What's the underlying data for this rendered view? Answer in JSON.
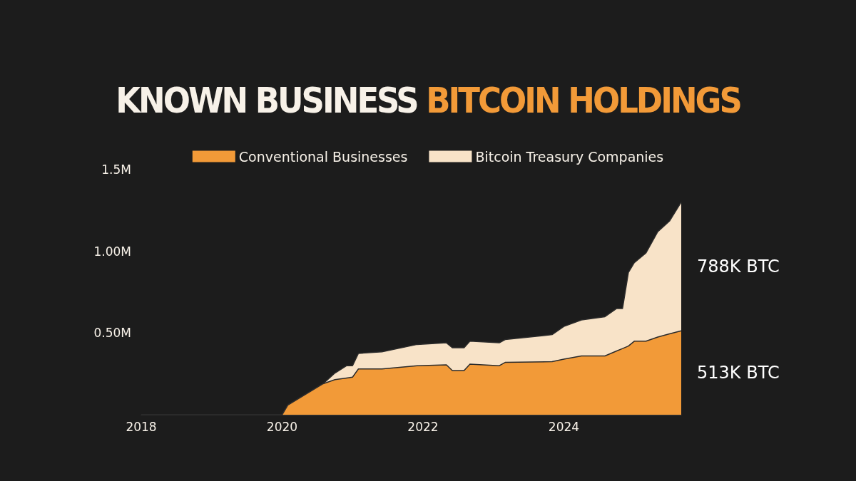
{
  "chart_data": {
    "type": "area",
    "title": "KNOWN BUSINESS BITCOIN HOLDINGS",
    "stacked": true,
    "legend": "top",
    "x": [
      "2018-01",
      "2019-12",
      "2020-01",
      "2020-02",
      "2020-08",
      "2020-10",
      "2020-12",
      "2021-01",
      "2021-02",
      "2021-06",
      "2021-12",
      "2022-05",
      "2022-06",
      "2022-08",
      "2022-09",
      "2023-02",
      "2023-03",
      "2023-11",
      "2024-01",
      "2024-04",
      "2024-08",
      "2024-10",
      "2024-11",
      "2024-12",
      "2025-01",
      "2025-03",
      "2025-05",
      "2025-07",
      "2025-09"
    ],
    "series": [
      {
        "name": "Conventional Businesses",
        "color": "#f29a38",
        "values": [
          0,
          0,
          0,
          0.06,
          0.19,
          0.215,
          0.225,
          0.23,
          0.28,
          0.28,
          0.3,
          0.305,
          0.27,
          0.27,
          0.31,
          0.3,
          0.32,
          0.325,
          0.34,
          0.36,
          0.36,
          0.39,
          0.405,
          0.42,
          0.45,
          0.45,
          0.475,
          0.495,
          0.513
        ]
      },
      {
        "name": "Bitcoin Treasury Companies",
        "color": "#f8e3c8",
        "values": [
          0,
          0,
          0,
          0,
          0,
          0.04,
          0.075,
          0.07,
          0.095,
          0.105,
          0.13,
          0.135,
          0.14,
          0.14,
          0.14,
          0.14,
          0.14,
          0.165,
          0.2,
          0.22,
          0.24,
          0.26,
          0.245,
          0.45,
          0.48,
          0.54,
          0.645,
          0.69,
          0.788
        ]
      }
    ],
    "annotations": [
      "513K BTC",
      "788K BTC"
    ],
    "xlim": [
      "2018-01",
      "2025-09"
    ],
    "xticks": [
      {
        "value": "2018",
        "label": "2018"
      },
      {
        "value": "2020",
        "label": "2020"
      },
      {
        "value": "2022",
        "label": "2022"
      },
      {
        "value": "2024",
        "label": "2024"
      }
    ],
    "ylim": [
      0,
      1.5
    ],
    "yticks": [
      {
        "value": 0.5,
        "label": "0.50M"
      },
      {
        "value": 1.0,
        "label": "1.00M"
      },
      {
        "value": 1.5,
        "label": "1.5M"
      }
    ],
    "grid": false
  }
}
